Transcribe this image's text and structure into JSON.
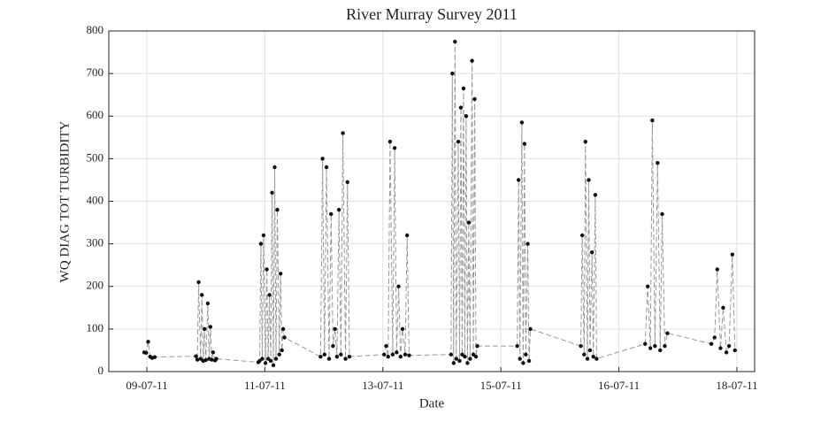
{
  "chart_data": {
    "type": "line",
    "title": "River Murray Survey 2011",
    "x_label": "Date",
    "y_label": "WQ DIAG TOT TURBIDITY",
    "xlim": [
      8.62,
      18.47
    ],
    "ylim": [
      0,
      800
    ],
    "xticks": [
      {
        "value": 9.2,
        "label": "09-07-11"
      },
      {
        "value": 11,
        "label": "11-07-11"
      },
      {
        "value": 12.8,
        "label": "13-07-11"
      },
      {
        "value": 14.6,
        "label": "15-07-11"
      },
      {
        "value": 16.4,
        "label": "16-07-11"
      },
      {
        "value": 18.2,
        "label": "18-07-11"
      }
    ],
    "yticks": [
      0,
      100,
      200,
      300,
      400,
      500,
      600,
      700,
      800
    ],
    "grid": true,
    "series": [
      {
        "color": "#999999",
        "marker_color": "#111111",
        "x": [
          9.16,
          9.19,
          9.22,
          9.25,
          9.28,
          9.32,
          9.95,
          9.97,
          9.99,
          10.02,
          10.04,
          10.06,
          10.08,
          10.1,
          10.13,
          10.15,
          10.17,
          10.19,
          10.21,
          10.24,
          10.26,
          10.9,
          10.92,
          10.94,
          10.96,
          10.98,
          11.01,
          11.03,
          11.05,
          11.07,
          11.09,
          11.11,
          11.13,
          11.15,
          11.17,
          11.19,
          11.22,
          11.24,
          11.26,
          11.28,
          11.3,
          11.85,
          11.88,
          11.91,
          11.94,
          11.98,
          12.01,
          12.04,
          12.07,
          12.1,
          12.13,
          12.16,
          12.19,
          12.23,
          12.26,
          12.29,
          12.82,
          12.85,
          12.88,
          12.91,
          12.95,
          12.98,
          13.01,
          13.04,
          13.07,
          13.1,
          13.14,
          13.17,
          13.2,
          13.84,
          13.86,
          13.88,
          13.9,
          13.92,
          13.95,
          13.97,
          13.99,
          14.01,
          14.03,
          14.05,
          14.07,
          14.09,
          14.11,
          14.13,
          14.16,
          14.18,
          14.2,
          14.22,
          14.24,
          14.85,
          14.87,
          14.89,
          14.92,
          14.94,
          14.96,
          14.98,
          15.01,
          15.03,
          15.05,
          15.82,
          15.84,
          15.87,
          15.89,
          15.92,
          15.94,
          15.96,
          15.99,
          16.01,
          16.04,
          16.06,
          16.8,
          16.84,
          16.88,
          16.91,
          16.95,
          16.99,
          17.03,
          17.06,
          17.1,
          17.14,
          17.81,
          17.86,
          17.9,
          17.95,
          17.99,
          18.04,
          18.08,
          18.13,
          18.17
        ],
        "values": [
          45,
          44,
          70,
          35,
          32,
          34,
          36,
          28,
          210,
          30,
          180,
          25,
          100,
          27,
          160,
          30,
          105,
          28,
          45,
          26,
          30,
          22,
          25,
          300,
          30,
          320,
          20,
          240,
          30,
          180,
          25,
          420,
          15,
          480,
          30,
          380,
          40,
          230,
          50,
          100,
          80,
          35,
          500,
          40,
          480,
          30,
          370,
          60,
          100,
          35,
          380,
          40,
          560,
          30,
          445,
          35,
          40,
          60,
          35,
          540,
          40,
          525,
          45,
          200,
          35,
          100,
          40,
          320,
          38,
          40,
          700,
          20,
          775,
          30,
          540,
          25,
          620,
          40,
          665,
          35,
          600,
          20,
          350,
          30,
          730,
          40,
          640,
          35,
          60,
          60,
          450,
          30,
          585,
          20,
          535,
          40,
          300,
          25,
          100,
          60,
          320,
          40,
          540,
          30,
          450,
          50,
          280,
          35,
          415,
          30,
          65,
          200,
          55,
          590,
          60,
          490,
          50,
          370,
          60,
          90,
          65,
          80,
          240,
          55,
          150,
          45,
          60,
          275,
          50
        ]
      }
    ]
  }
}
